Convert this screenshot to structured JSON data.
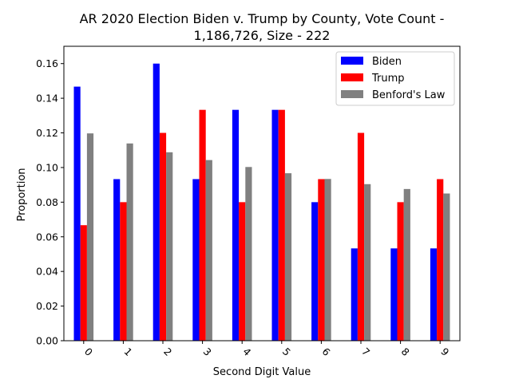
{
  "chart_data": {
    "type": "bar",
    "title_lines": [
      "AR 2020 Election Biden v. Trump by County, Vote Count -",
      "1,186,726, Size - 222"
    ],
    "xlabel": "Second Digit Value",
    "ylabel": "Proportion",
    "categories": [
      "0",
      "1",
      "2",
      "3",
      "4",
      "5",
      "6",
      "7",
      "8",
      "9"
    ],
    "ylim": [
      0,
      0.17
    ],
    "yticks": [
      0.0,
      0.02,
      0.04,
      0.06,
      0.08,
      0.1,
      0.12,
      0.14,
      0.16
    ],
    "ytick_labels": [
      "0.00",
      "0.02",
      "0.04",
      "0.06",
      "0.08",
      "0.10",
      "0.12",
      "0.14",
      "0.16"
    ],
    "grid": false,
    "legend_position": "top-right",
    "series": [
      {
        "name": "Biden",
        "color": "#0000ff",
        "values": [
          0.1467,
          0.0933,
          0.16,
          0.0933,
          0.1333,
          0.1333,
          0.08,
          0.0533,
          0.0533,
          0.0533
        ]
      },
      {
        "name": "Trump",
        "color": "#ff0000",
        "values": [
          0.0667,
          0.08,
          0.12,
          0.1333,
          0.08,
          0.1333,
          0.0933,
          0.12,
          0.08,
          0.0933
        ]
      },
      {
        "name": "Benford's Law",
        "color": "#808080",
        "values": [
          0.1197,
          0.1139,
          0.1088,
          0.1043,
          0.1003,
          0.0967,
          0.0934,
          0.0904,
          0.0876,
          0.085
        ]
      }
    ]
  }
}
